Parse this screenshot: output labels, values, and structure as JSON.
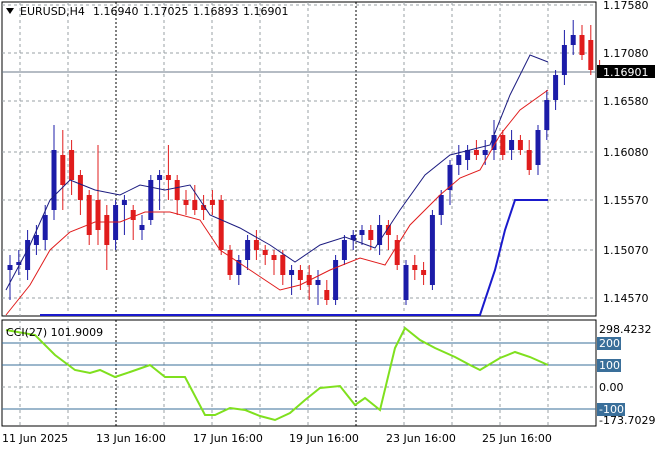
{
  "header": {
    "symbol": "EURUSD,H4",
    "open": "1.16940",
    "high": "1.17025",
    "low": "1.16893",
    "close": "1.16901"
  },
  "price_axis": {
    "ticks": [
      "1.17580",
      "1.17080",
      "1.16580",
      "1.16080",
      "1.15570",
      "1.15070",
      "1.14570"
    ],
    "current_price_label": "1.16901"
  },
  "cci_panel": {
    "label": "CCI(27) 101.9009",
    "ticks": [
      "298.4232",
      "200",
      "100",
      "0.00",
      "-100",
      "-173.7029"
    ]
  },
  "time_axis": {
    "labels": [
      "11 Jun 2025",
      "13 Jun 16:00",
      "17 Jun 16:00",
      "19 Jun 16:00",
      "23 Jun 16:00",
      "25 Jun 16:00"
    ]
  },
  "colors": {
    "bull": "#1c1ca8",
    "bear": "#e01c1c",
    "fast_ma": "#1c1c80",
    "slow_ma": "#e01c1c",
    "trend_line": "#1a1acc",
    "cci_line": "#7fe01e",
    "cci_level": "#3a6f9a",
    "price_label_bg": "#000000",
    "level_box_bg": "#3a6f9a"
  }
}
